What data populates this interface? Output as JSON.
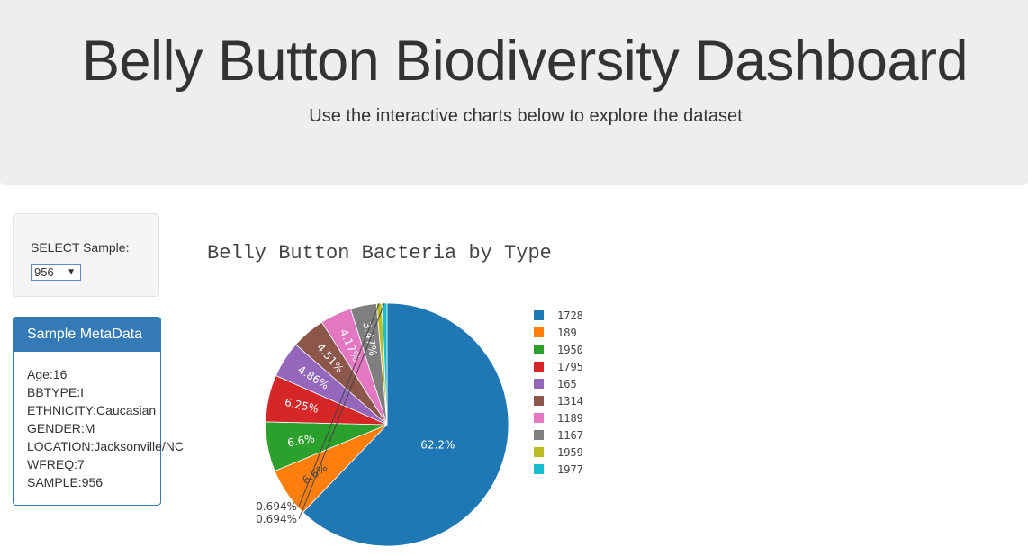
{
  "header": {
    "title": "Belly Button Biodiversity Dashboard",
    "subtitle": "Use the interactive charts below to explore the dataset"
  },
  "sample_select": {
    "label": "SELECT Sample:",
    "selected": "956"
  },
  "metadata": {
    "heading": "Sample MetaData",
    "rows": [
      "Age:16",
      "BBTYPE:I",
      "ETHNICITY:Caucasian",
      "GENDER:M",
      "LOCATION:Jacksonville/NC",
      "WFREQ:7",
      "SAMPLE:956"
    ]
  },
  "chart_data": {
    "type": "pie",
    "title": "Belly Button Bacteria by Type",
    "labels": [
      "1728",
      "189",
      "1950",
      "1795",
      "165",
      "1314",
      "1189",
      "1167",
      "1959",
      "1977"
    ],
    "values": [
      62.2,
      6.6,
      6.6,
      6.25,
      4.86,
      4.51,
      4.17,
      3.47,
      0.694,
      0.694
    ],
    "text_labels": [
      "62.2%",
      "6.6%",
      "6.6%",
      "6.25%",
      "4.86%",
      "4.51%",
      "4.17%",
      "3.47%",
      "0.694%",
      "0.694%"
    ],
    "colors": [
      "#1f77b4",
      "#ff7f0e",
      "#2ca02c",
      "#d62728",
      "#9467bd",
      "#8c564b",
      "#e377c2",
      "#7f7f7f",
      "#bcbd22",
      "#17becf"
    ],
    "label_colors": [
      "#ffffff",
      "#444444",
      "#ffffff",
      "#ffffff",
      "#ffffff",
      "#ffffff",
      "#ffffff",
      "#ffffff",
      "#444444",
      "#444444"
    ],
    "legend_position": "right",
    "direction": "clockwise",
    "start": "top"
  }
}
